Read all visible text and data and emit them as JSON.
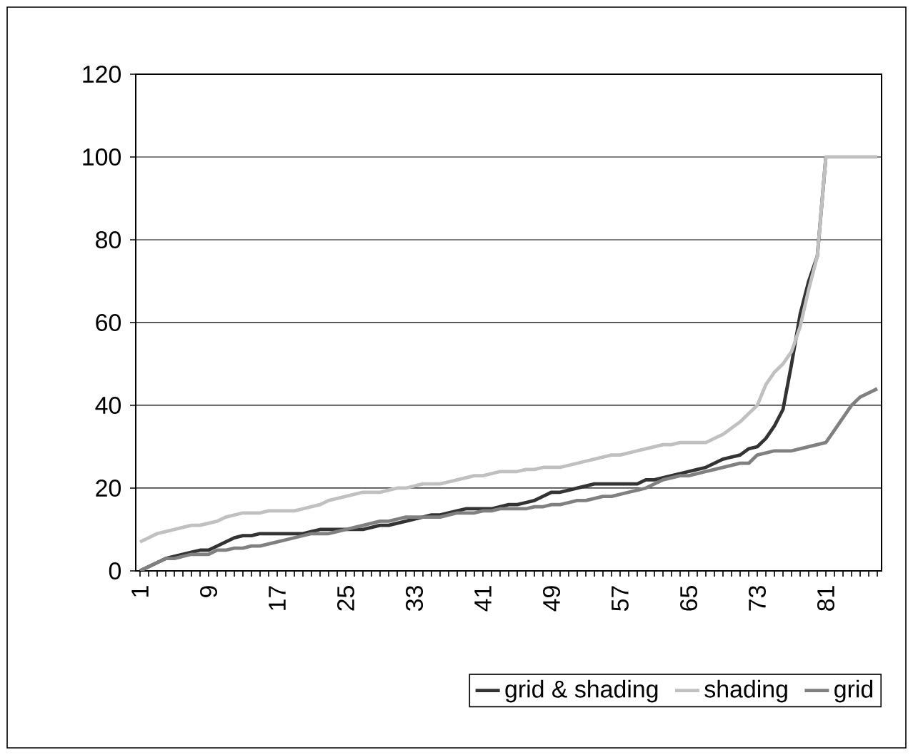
{
  "chart_data": {
    "type": "line",
    "categories": [
      "1",
      null,
      null,
      null,
      null,
      null,
      null,
      null,
      "9",
      null,
      null,
      null,
      null,
      null,
      null,
      null,
      "17",
      null,
      null,
      null,
      null,
      null,
      null,
      null,
      "25",
      null,
      null,
      null,
      null,
      null,
      null,
      null,
      "33",
      null,
      null,
      null,
      null,
      null,
      null,
      null,
      "41",
      null,
      null,
      null,
      null,
      null,
      null,
      null,
      "49",
      null,
      null,
      null,
      null,
      null,
      null,
      null,
      "57",
      null,
      null,
      null,
      null,
      null,
      null,
      null,
      "65",
      null,
      null,
      null,
      null,
      null,
      null,
      null,
      "73",
      null,
      null,
      null,
      null,
      null,
      null,
      null,
      "81",
      null,
      null,
      null,
      null,
      null,
      null
    ],
    "series": [
      {
        "name": "grid & shading",
        "color": "#333333",
        "values": [
          0,
          1,
          2,
          3,
          3.5,
          4,
          4.5,
          5,
          5,
          6,
          7,
          8,
          8.5,
          8.5,
          9,
          9,
          9,
          9,
          9,
          9,
          9.5,
          10,
          10,
          10,
          10,
          10,
          10,
          10.5,
          11,
          11,
          11.5,
          12,
          12.5,
          13,
          13.5,
          13.5,
          14,
          14.5,
          15,
          15,
          15,
          15,
          15.5,
          16,
          16,
          16.5,
          17,
          18,
          19,
          19,
          19.5,
          20,
          20.5,
          21,
          21,
          21,
          21,
          21,
          21,
          22,
          22,
          22.5,
          23,
          23.5,
          24,
          24.5,
          25,
          26,
          27,
          27.5,
          28,
          29.5,
          30,
          32,
          35,
          39,
          50,
          62,
          70,
          76,
          100,
          null,
          null,
          null,
          null,
          null,
          null
        ]
      },
      {
        "name": "shading",
        "color": "#c0c0c0",
        "values": [
          7,
          8,
          9,
          9.5,
          10,
          10.5,
          11,
          11,
          11.5,
          12,
          13,
          13.5,
          14,
          14,
          14,
          14.5,
          14.5,
          14.5,
          14.5,
          15,
          15.5,
          16,
          17,
          17.5,
          18,
          18.5,
          19,
          19,
          19,
          19.5,
          20,
          20,
          20.5,
          21,
          21,
          21,
          21.5,
          22,
          22.5,
          23,
          23,
          23.5,
          24,
          24,
          24,
          24.5,
          24.5,
          25,
          25,
          25,
          25.5,
          26,
          26.5,
          27,
          27.5,
          28,
          28,
          28.5,
          29,
          29.5,
          30,
          30.5,
          30.5,
          31,
          31,
          31,
          31,
          32,
          33,
          34.5,
          36,
          38,
          40,
          45,
          48,
          50,
          53,
          59,
          68,
          76,
          100,
          100,
          100,
          100,
          100,
          100,
          100
        ]
      },
      {
        "name": "grid",
        "color": "#808080",
        "values": [
          0,
          1,
          2,
          3,
          3,
          3.5,
          4,
          4,
          4,
          5,
          5,
          5.5,
          5.5,
          6,
          6,
          6.5,
          7,
          7.5,
          8,
          8.5,
          9,
          9,
          9,
          9.5,
          10,
          10.5,
          11,
          11.5,
          12,
          12,
          12.5,
          13,
          13,
          13,
          13,
          13,
          13.5,
          14,
          14,
          14,
          14.5,
          14.5,
          15,
          15,
          15,
          15,
          15.5,
          15.5,
          16,
          16,
          16.5,
          17,
          17,
          17.5,
          18,
          18,
          18.5,
          19,
          19.5,
          20,
          21,
          22,
          22.5,
          23,
          23,
          23.5,
          24,
          24.5,
          25,
          25.5,
          26,
          26,
          28,
          28.5,
          29,
          29,
          29,
          29.5,
          30,
          30.5,
          31,
          34,
          37,
          40,
          42,
          43,
          44
        ]
      }
    ],
    "ylim": [
      0,
      120
    ],
    "yticks": [
      0,
      20,
      40,
      60,
      80,
      100,
      120
    ],
    "grid": "y",
    "legend": "bottom",
    "marker": "none",
    "line_style": "solid"
  }
}
